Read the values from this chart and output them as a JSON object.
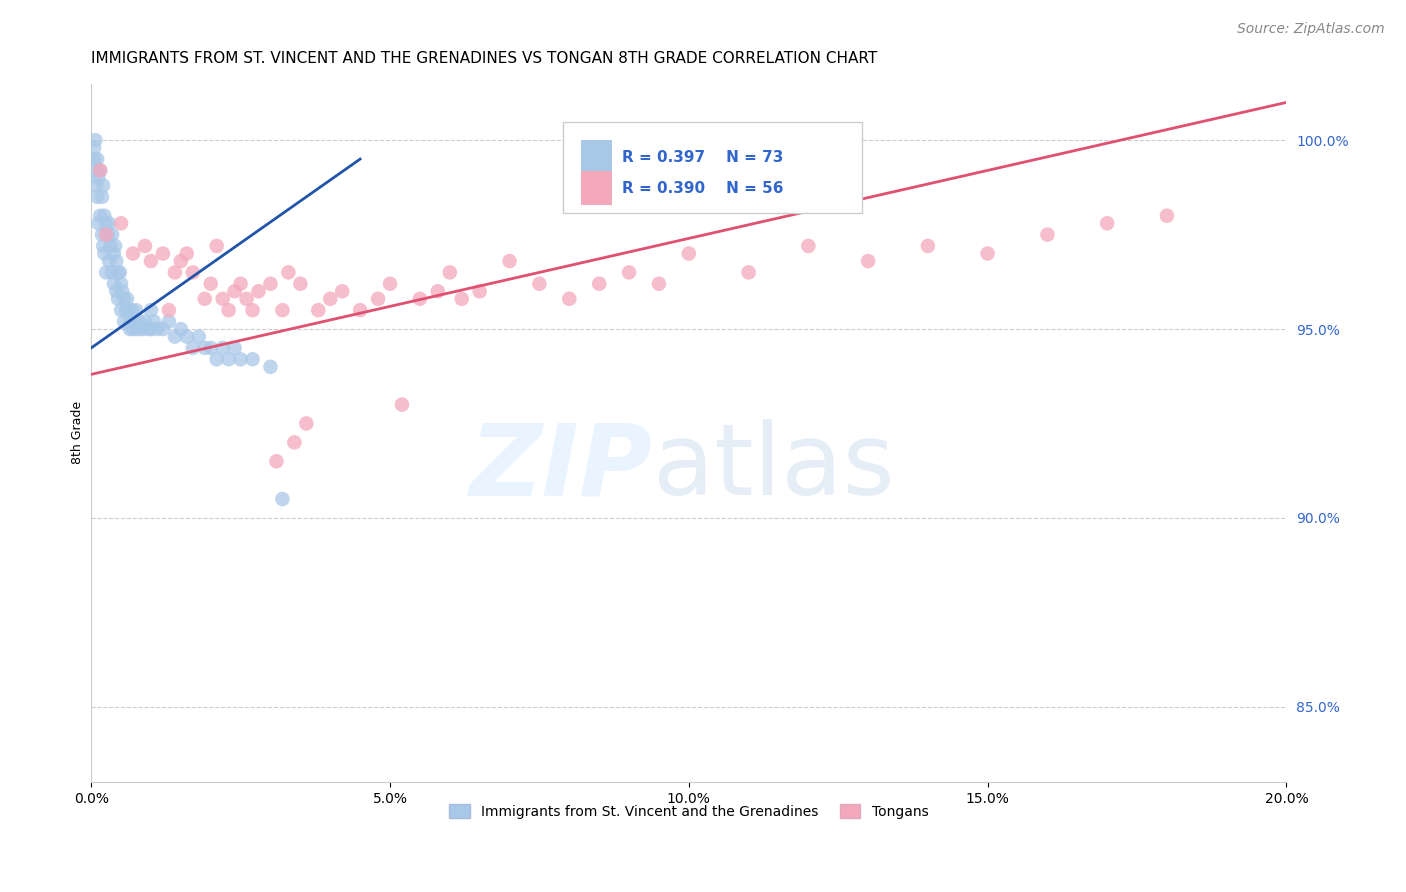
{
  "title": "IMMIGRANTS FROM ST. VINCENT AND THE GRENADINES VS TONGAN 8TH GRADE CORRELATION CHART",
  "source": "Source: ZipAtlas.com",
  "xlabel_vals": [
    0.0,
    5.0,
    10.0,
    15.0,
    20.0
  ],
  "ylabel_vals": [
    85.0,
    90.0,
    95.0,
    100.0
  ],
  "xlim": [
    0.0,
    20.0
  ],
  "ylim": [
    83.0,
    101.5
  ],
  "blue_R": 0.397,
  "blue_N": 73,
  "pink_R": 0.39,
  "pink_N": 56,
  "blue_color": "#a8c8e8",
  "pink_color": "#f4a8bc",
  "blue_line_color": "#2255aa",
  "pink_line_color": "#e05070",
  "legend_label_blue": "Immigrants from St. Vincent and the Grenadines",
  "legend_label_pink": "Tongans",
  "ylabel": "8th Grade",
  "blue_trend_x": [
    0.0,
    4.5
  ],
  "blue_trend_y": [
    94.5,
    99.5
  ],
  "pink_trend_x": [
    0.0,
    20.0
  ],
  "pink_trend_y": [
    93.8,
    101.0
  ],
  "blue_points_x": [
    0.05,
    0.05,
    0.07,
    0.08,
    0.08,
    0.1,
    0.1,
    0.12,
    0.12,
    0.15,
    0.15,
    0.18,
    0.18,
    0.2,
    0.2,
    0.22,
    0.22,
    0.25,
    0.25,
    0.28,
    0.3,
    0.3,
    0.32,
    0.35,
    0.35,
    0.38,
    0.38,
    0.4,
    0.42,
    0.42,
    0.45,
    0.45,
    0.48,
    0.5,
    0.5,
    0.52,
    0.55,
    0.55,
    0.58,
    0.6,
    0.62,
    0.65,
    0.65,
    0.68,
    0.7,
    0.72,
    0.75,
    0.78,
    0.8,
    0.85,
    0.9,
    0.95,
    1.0,
    1.0,
    1.05,
    1.1,
    1.2,
    1.3,
    1.4,
    1.5,
    1.6,
    1.7,
    1.8,
    1.9,
    2.0,
    2.1,
    2.2,
    2.3,
    2.4,
    2.5,
    2.7,
    3.0,
    3.2
  ],
  "blue_points_y": [
    99.8,
    99.5,
    100.0,
    99.2,
    98.8,
    99.5,
    98.5,
    99.0,
    97.8,
    99.2,
    98.0,
    98.5,
    97.5,
    98.8,
    97.2,
    98.0,
    97.0,
    97.8,
    96.5,
    97.5,
    97.8,
    96.8,
    97.2,
    97.5,
    96.5,
    97.0,
    96.2,
    97.2,
    96.8,
    96.0,
    96.5,
    95.8,
    96.5,
    96.2,
    95.5,
    96.0,
    95.8,
    95.2,
    95.5,
    95.8,
    95.5,
    95.2,
    95.0,
    95.5,
    95.0,
    95.2,
    95.5,
    95.0,
    95.2,
    95.0,
    95.2,
    95.0,
    95.5,
    95.0,
    95.2,
    95.0,
    95.0,
    95.2,
    94.8,
    95.0,
    94.8,
    94.5,
    94.8,
    94.5,
    94.5,
    94.2,
    94.5,
    94.2,
    94.5,
    94.2,
    94.2,
    94.0,
    90.5
  ],
  "pink_points_x": [
    0.15,
    0.25,
    0.5,
    0.7,
    0.9,
    1.0,
    1.2,
    1.4,
    1.5,
    1.6,
    1.7,
    1.9,
    2.0,
    2.2,
    2.4,
    2.5,
    2.7,
    2.8,
    3.0,
    3.2,
    3.5,
    3.8,
    4.0,
    4.2,
    4.5,
    5.0,
    5.5,
    5.8,
    6.0,
    6.5,
    7.0,
    7.5,
    8.0,
    8.5,
    9.0,
    9.5,
    10.0,
    11.0,
    12.0,
    13.0,
    14.0,
    15.0,
    16.0,
    17.0,
    18.0,
    1.3,
    2.1,
    3.3,
    4.8,
    6.2,
    2.3,
    2.6,
    3.6,
    5.2,
    3.1,
    3.4
  ],
  "pink_points_y": [
    99.2,
    97.5,
    97.8,
    97.0,
    97.2,
    96.8,
    97.0,
    96.5,
    96.8,
    97.0,
    96.5,
    95.8,
    96.2,
    95.8,
    96.0,
    96.2,
    95.5,
    96.0,
    96.2,
    95.5,
    96.2,
    95.5,
    95.8,
    96.0,
    95.5,
    96.2,
    95.8,
    96.0,
    96.5,
    96.0,
    96.8,
    96.2,
    95.8,
    96.2,
    96.5,
    96.2,
    97.0,
    96.5,
    97.2,
    96.8,
    97.2,
    97.0,
    97.5,
    97.8,
    98.0,
    95.5,
    97.2,
    96.5,
    95.8,
    95.8,
    95.5,
    95.8,
    92.5,
    93.0,
    91.5,
    92.0
  ],
  "grid_color": "#cccccc",
  "title_fontsize": 11,
  "axis_label_fontsize": 9,
  "tick_fontsize": 10,
  "source_fontsize": 10
}
